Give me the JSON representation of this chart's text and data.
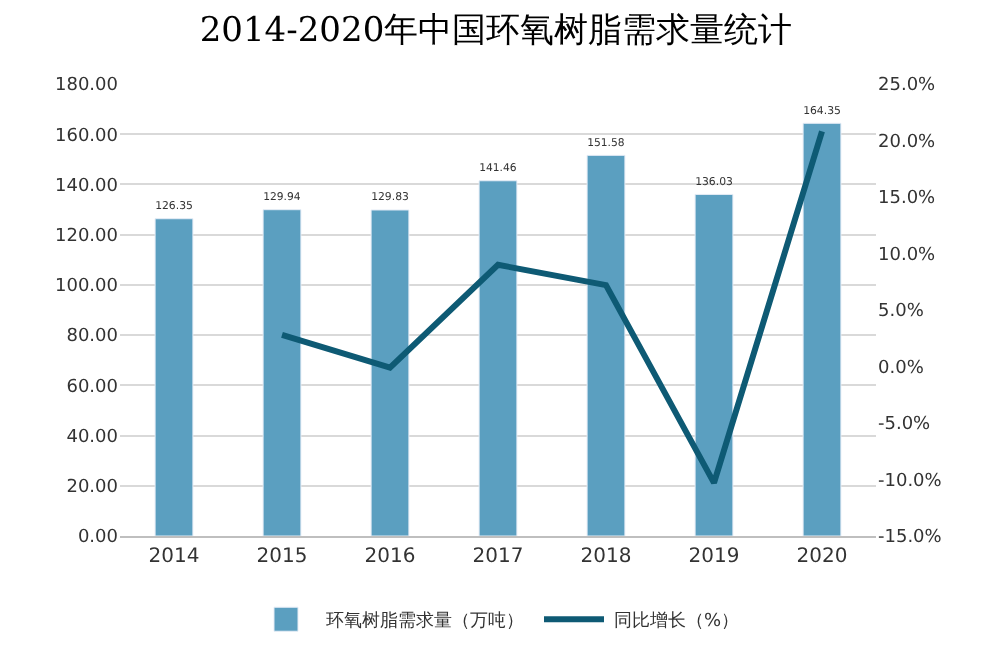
{
  "chart_data": {
    "type": "bar",
    "title": "2014-2020年中国环氧树脂需求量统计",
    "categories": [
      "2014",
      "2015",
      "2016",
      "2017",
      "2018",
      "2019",
      "2020"
    ],
    "series": [
      {
        "name": "环氧树脂需求量（万吨）",
        "color": "#5b9fc0",
        "values": [
          126.35,
          129.94,
          129.83,
          141.46,
          151.58,
          136.03,
          164.35
        ],
        "value_labels": [
          "126.35",
          "129.94",
          "129.83",
          "141.46",
          "151.58",
          "136.03",
          "164.35"
        ]
      },
      {
        "name": "同比增长（%）",
        "type": "line",
        "axis": "y2",
        "color": "#0e5a74",
        "values": [
          null,
          2.8,
          -0.1,
          9.0,
          7.2,
          -10.3,
          20.8
        ]
      }
    ],
    "ylim": [
      0,
      180
    ],
    "yticks": [
      {
        "value": 0,
        "label": "0.00"
      },
      {
        "value": 20,
        "label": "20.00"
      },
      {
        "value": 40,
        "label": "40.00"
      },
      {
        "value": 60,
        "label": "60.00"
      },
      {
        "value": 80,
        "label": "80.00"
      },
      {
        "value": 100,
        "label": "100.00"
      },
      {
        "value": 120,
        "label": "120.00"
      },
      {
        "value": 140,
        "label": "140.00"
      },
      {
        "value": 160,
        "label": "160.00"
      },
      {
        "value": 180,
        "label": "180.00"
      }
    ],
    "y2lim": [
      -15,
      25
    ],
    "y2ticks": [
      {
        "value": -15,
        "label": "-15.0%"
      },
      {
        "value": -10,
        "label": "-10.0%"
      },
      {
        "value": -5,
        "label": "-5.0%"
      },
      {
        "value": 0,
        "label": "0.0%"
      },
      {
        "value": 5,
        "label": "5.0%"
      },
      {
        "value": 10,
        "label": "10.0%"
      },
      {
        "value": 15,
        "label": "15.0%"
      },
      {
        "value": 20,
        "label": "20.0%"
      },
      {
        "value": 25,
        "label": "25.0%"
      }
    ],
    "grid": "y",
    "legend": "bottom",
    "marker": "none",
    "line_style": "solid"
  }
}
